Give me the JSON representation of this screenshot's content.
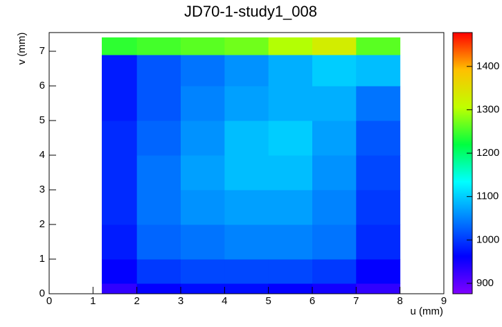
{
  "chart_data": {
    "type": "heatmap",
    "title": "JD70-1-study1_008",
    "x_label": "u (mm)",
    "y_label": "v (mm)",
    "xlim": [
      0,
      9
    ],
    "xticks": [
      0,
      1,
      2,
      3,
      4,
      5,
      6,
      7,
      8,
      9
    ],
    "ylim": [
      0,
      7.54
    ],
    "yticks": [
      0,
      1,
      2,
      3,
      4,
      5,
      6,
      7
    ],
    "zlim": [
      876,
      1478
    ],
    "zticks": [
      900,
      1000,
      1100,
      1200,
      1300,
      1400
    ],
    "colormap": [
      "#8000ff",
      "#0000ff",
      "#0080ff",
      "#00ffff",
      "#00ff40",
      "#c0ff00",
      "#ffc000",
      "#ff0000"
    ],
    "x_bins": [
      1.2,
      2,
      3,
      4,
      5,
      6,
      7,
      8
    ],
    "y_bins": [
      0,
      0.3,
      1,
      2,
      3,
      4,
      5,
      6,
      6.9,
      7.4
    ],
    "values": [
      [
        930,
        960,
        970,
        970,
        960,
        950,
        930
      ],
      [
        960,
        1000,
        1010,
        1010,
        1010,
        1000,
        960
      ],
      [
        980,
        1030,
        1040,
        1050,
        1050,
        1040,
        990
      ],
      [
        990,
        1040,
        1060,
        1070,
        1070,
        1050,
        1000
      ],
      [
        990,
        1040,
        1070,
        1090,
        1090,
        1060,
        1010
      ],
      [
        990,
        1030,
        1060,
        1090,
        1100,
        1070,
        1020
      ],
      [
        980,
        1020,
        1050,
        1070,
        1080,
        1080,
        1040
      ],
      [
        980,
        1020,
        1040,
        1060,
        1080,
        1100,
        1090
      ],
      [
        1240,
        1250,
        1260,
        1270,
        1300,
        1330,
        1260
      ]
    ]
  }
}
